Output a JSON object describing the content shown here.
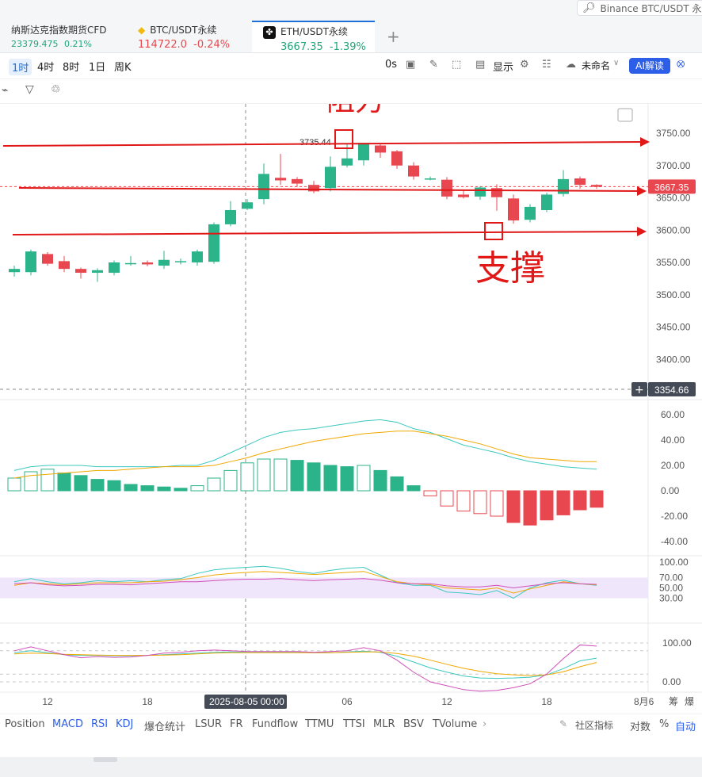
{
  "search": {
    "placeholder": "Binance BTC/USDT 永续",
    "icon": "search-icon"
  },
  "tabs": [
    {
      "name": "纳斯达克指数期货CFD",
      "price": "23379.475",
      "change": "0.21%",
      "color": "#21a67a"
    },
    {
      "name": "BTC/USDT永续",
      "price": "114722.0",
      "change": "-0.24%",
      "color": "#e8474f"
    },
    {
      "name": "ETH/USDT永续",
      "price": "3667.35",
      "change": "-1.39%",
      "color": "#21a67a"
    }
  ],
  "add_tab": "+",
  "toolbar": {
    "timeframes": [
      "1时",
      "4时",
      "8时",
      "1日",
      "周K"
    ],
    "countdown": "0s",
    "display": "显示",
    "unnamed": "未命名",
    "ai_label": "AI解读"
  },
  "colors": {
    "up": "#2bb38a",
    "down": "#e8474f",
    "annotation": "#e01818",
    "accent": "#2c5ee8"
  },
  "chart_data": {
    "type": "candlestick",
    "price_axis": {
      "ticks": [
        "3750.00",
        "3700.00",
        "3650.00",
        "3600.00",
        "3550.00",
        "3500.00",
        "3450.00",
        "3400.00"
      ],
      "range": [
        3380,
        3790
      ]
    },
    "current_price": "3667.35",
    "crosshair_price": "3354.66",
    "crosshair_time": "2025-08-05 00:00",
    "high_label": "3735.44",
    "candles": [
      [
        3535,
        3540,
        3528,
        3545
      ],
      [
        3535,
        3567,
        3530,
        3570
      ],
      [
        3563,
        3548,
        3545,
        3566
      ],
      [
        3552,
        3540,
        3535,
        3560
      ],
      [
        3540,
        3534,
        3525,
        3542
      ],
      [
        3534,
        3538,
        3520,
        3541
      ],
      [
        3534,
        3550,
        3530,
        3553
      ],
      [
        3548,
        3549,
        3545,
        3560
      ],
      [
        3550,
        3547,
        3544,
        3553
      ],
      [
        3545,
        3554,
        3540,
        3568
      ],
      [
        3551,
        3552,
        3547,
        3556
      ],
      [
        3550,
        3567,
        3545,
        3570
      ],
      [
        3551,
        3609,
        3548,
        3612
      ],
      [
        3609,
        3631,
        3606,
        3645
      ],
      [
        3633,
        3643,
        3631,
        3648
      ],
      [
        3648,
        3687,
        3640,
        3703
      ],
      [
        3681,
        3677,
        3670,
        3718
      ],
      [
        3679,
        3672,
        3667,
        3682
      ],
      [
        3670,
        3660,
        3657,
        3676
      ],
      [
        3665,
        3698,
        3660,
        3714
      ],
      [
        3700,
        3711,
        3697,
        3733
      ],
      [
        3708,
        3735,
        3700,
        3735
      ],
      [
        3731,
        3720,
        3712,
        3734
      ],
      [
        3722,
        3700,
        3695,
        3724
      ],
      [
        3700,
        3683,
        3678,
        3705
      ],
      [
        3680,
        3680,
        3677,
        3683
      ],
      [
        3678,
        3652,
        3648,
        3682
      ],
      [
        3655,
        3651,
        3649,
        3662
      ],
      [
        3652,
        3666,
        3647,
        3668
      ],
      [
        3665,
        3651,
        3630,
        3671
      ],
      [
        3649,
        3615,
        3610,
        3655
      ],
      [
        3616,
        3636,
        3612,
        3640
      ],
      [
        3631,
        3655,
        3628,
        3658
      ],
      [
        3656,
        3679,
        3652,
        3693
      ],
      [
        3680,
        3670,
        3664,
        3683
      ],
      [
        3670,
        3667,
        3664,
        3671
      ]
    ],
    "macd": {
      "ticks": [
        "60.00",
        "40.00",
        "20.00",
        "0.00",
        "-20.00",
        "-40.00"
      ],
      "hist": [
        10,
        15,
        17,
        14,
        12,
        9,
        8,
        5,
        4,
        3,
        2,
        4,
        10,
        16,
        22,
        25,
        25,
        24,
        22,
        20,
        19,
        20,
        16,
        11,
        4,
        -4,
        -12,
        -16,
        -18,
        -20,
        -25,
        -27,
        -23,
        -19,
        -15,
        -13
      ],
      "dif": [
        16,
        19,
        20,
        20,
        20,
        19,
        19,
        19,
        19,
        19,
        20,
        20,
        24,
        30,
        36,
        42,
        46,
        48,
        49,
        51,
        53,
        55,
        56,
        54,
        49,
        46,
        41,
        36,
        33,
        30,
        26,
        23,
        21,
        19,
        18,
        17
      ],
      "dea": [
        10,
        12,
        13,
        14,
        15,
        16,
        16,
        17,
        18,
        19,
        19,
        19,
        20,
        23,
        26,
        30,
        33,
        36,
        39,
        41,
        43,
        45,
        46,
        47,
        47,
        45,
        43,
        40,
        37,
        33,
        29,
        26,
        25,
        24,
        23,
        23
      ]
    },
    "rsi": {
      "ticks": [
        "100.00",
        "70.00",
        "50.00",
        "30.00"
      ],
      "band": [
        30,
        70
      ],
      "line1": [
        62,
        68,
        62,
        58,
        60,
        64,
        62,
        64,
        62,
        66,
        68,
        78,
        85,
        88,
        90,
        92,
        88,
        82,
        78,
        84,
        88,
        90,
        75,
        60,
        55,
        55,
        42,
        40,
        37,
        45,
        30,
        50,
        60,
        65,
        58,
        55
      ],
      "line2": [
        55,
        60,
        58,
        56,
        58,
        60,
        60,
        60,
        62,
        63,
        66,
        70,
        75,
        78,
        80,
        82,
        80,
        78,
        76,
        78,
        80,
        82,
        72,
        62,
        58,
        56,
        50,
        48,
        46,
        50,
        40,
        48,
        55,
        62,
        58,
        56
      ],
      "line3": [
        58,
        60,
        56,
        54,
        55,
        57,
        57,
        56,
        58,
        60,
        62,
        62,
        64,
        66,
        67,
        67,
        68,
        66,
        64,
        66,
        67,
        68,
        65,
        60,
        58,
        58,
        54,
        52,
        52,
        55,
        50,
        54,
        58,
        60,
        58,
        57
      ]
    },
    "kdj": {
      "ticks": [
        "100.00",
        "0.00"
      ],
      "k": [
        75,
        80,
        75,
        70,
        68,
        68,
        67,
        67,
        68,
        70,
        72,
        74,
        76,
        77,
        76,
        76,
        76,
        76,
        75,
        75,
        77,
        79,
        76,
        66,
        51,
        36,
        25,
        15,
        10,
        9,
        10,
        12,
        18,
        34,
        54,
        61
      ],
      "d": [
        72,
        74,
        73,
        71,
        70,
        69,
        68,
        68,
        68,
        69,
        70,
        72,
        74,
        75,
        75,
        75,
        75,
        75,
        75,
        75,
        76,
        77,
        77,
        73,
        66,
        56,
        45,
        35,
        27,
        21,
        18,
        16,
        18,
        26,
        39,
        50
      ],
      "j": [
        80,
        90,
        80,
        70,
        62,
        65,
        63,
        64,
        68,
        74,
        76,
        80,
        82,
        80,
        78,
        78,
        78,
        78,
        76,
        78,
        80,
        88,
        80,
        56,
        25,
        0,
        -10,
        -20,
        -24,
        -22,
        -15,
        -5,
        20,
        60,
        95,
        92
      ]
    },
    "time_axis": [
      {
        "label": "12",
        "i": 2
      },
      {
        "label": "18",
        "i": 8
      },
      {
        "label": "06",
        "i": 20
      },
      {
        "label": "12",
        "i": 26
      },
      {
        "label": "18",
        "i": 32
      }
    ],
    "time_axis_right": "8月6",
    "annotations": {
      "resistance": "阻力",
      "support": "支撑"
    }
  },
  "bottom_tabs": [
    "Position",
    "MACD",
    "RSI",
    "KDJ",
    "爆仓统计",
    "LSUR",
    "FR",
    "Fundflow",
    "TTMU",
    "TTSI",
    "MLR",
    "BSV",
    "TVolume"
  ],
  "bottom_right": {
    "community": "社区指标",
    "log": "对数",
    "percent": "%",
    "auto": "自动"
  },
  "axis_extra": {
    "bottom_right_labels": [
      "筹",
      "爆"
    ]
  }
}
